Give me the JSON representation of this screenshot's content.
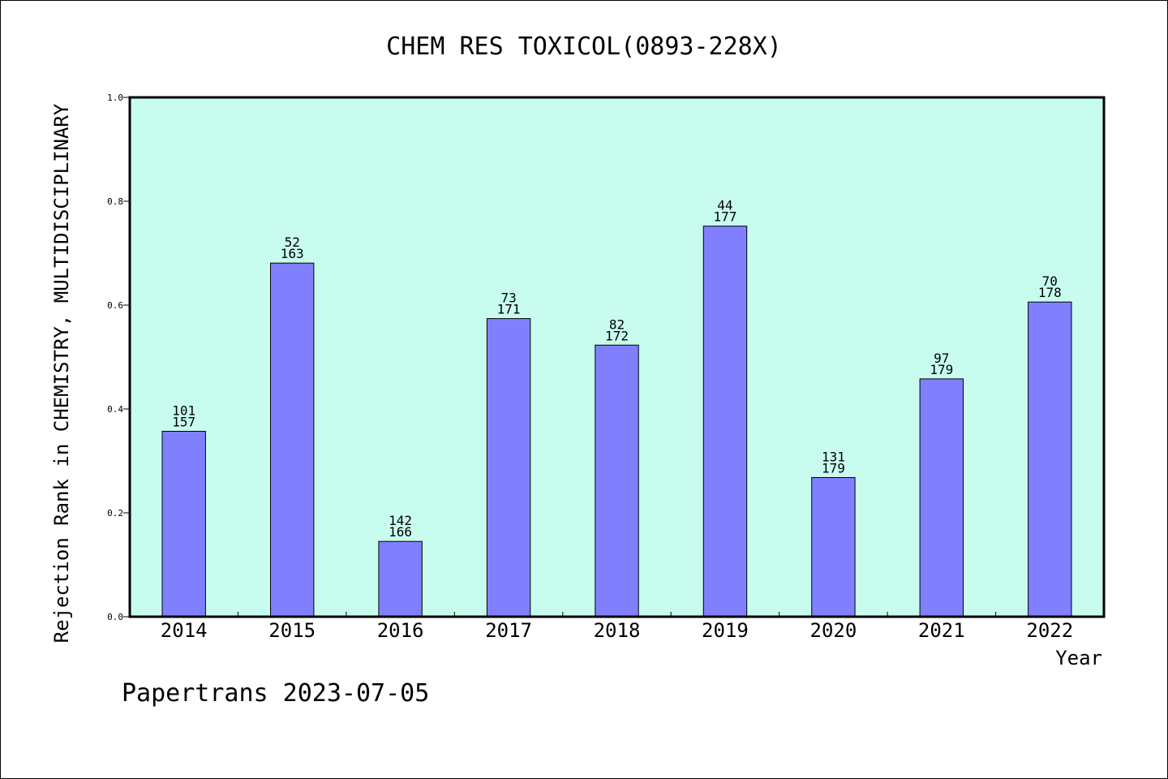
{
  "chart_data": {
    "type": "bar",
    "title": "CHEM RES TOXICOL(0893-228X)",
    "xlabel": "Year",
    "ylabel": "Rejection Rank in CHEMISTRY, MULTIDISCIPLINARY",
    "ylim": [
      0,
      1.0
    ],
    "yticks": [
      "0.0",
      "0.2",
      "0.4",
      "0.6",
      "0.8",
      "1.0"
    ],
    "categories": [
      "2014",
      "2015",
      "2016",
      "2017",
      "2018",
      "2019",
      "2020",
      "2021",
      "2022"
    ],
    "values": [
      0.357,
      0.681,
      0.145,
      0.574,
      0.523,
      0.752,
      0.268,
      0.458,
      0.606
    ],
    "rank_labels": [
      "101",
      "52",
      "142",
      "73",
      "82",
      "44",
      "131",
      "97",
      "70"
    ],
    "total_labels": [
      "157",
      "163",
      "166",
      "171",
      "172",
      "177",
      "179",
      "179",
      "178"
    ],
    "grid": false,
    "colors": {
      "plot_background": "#c8fcee",
      "bar_fill": "#8080ff",
      "bar_stroke": "#000000"
    }
  },
  "footer": {
    "text": "Papertrans 2023-07-05"
  }
}
